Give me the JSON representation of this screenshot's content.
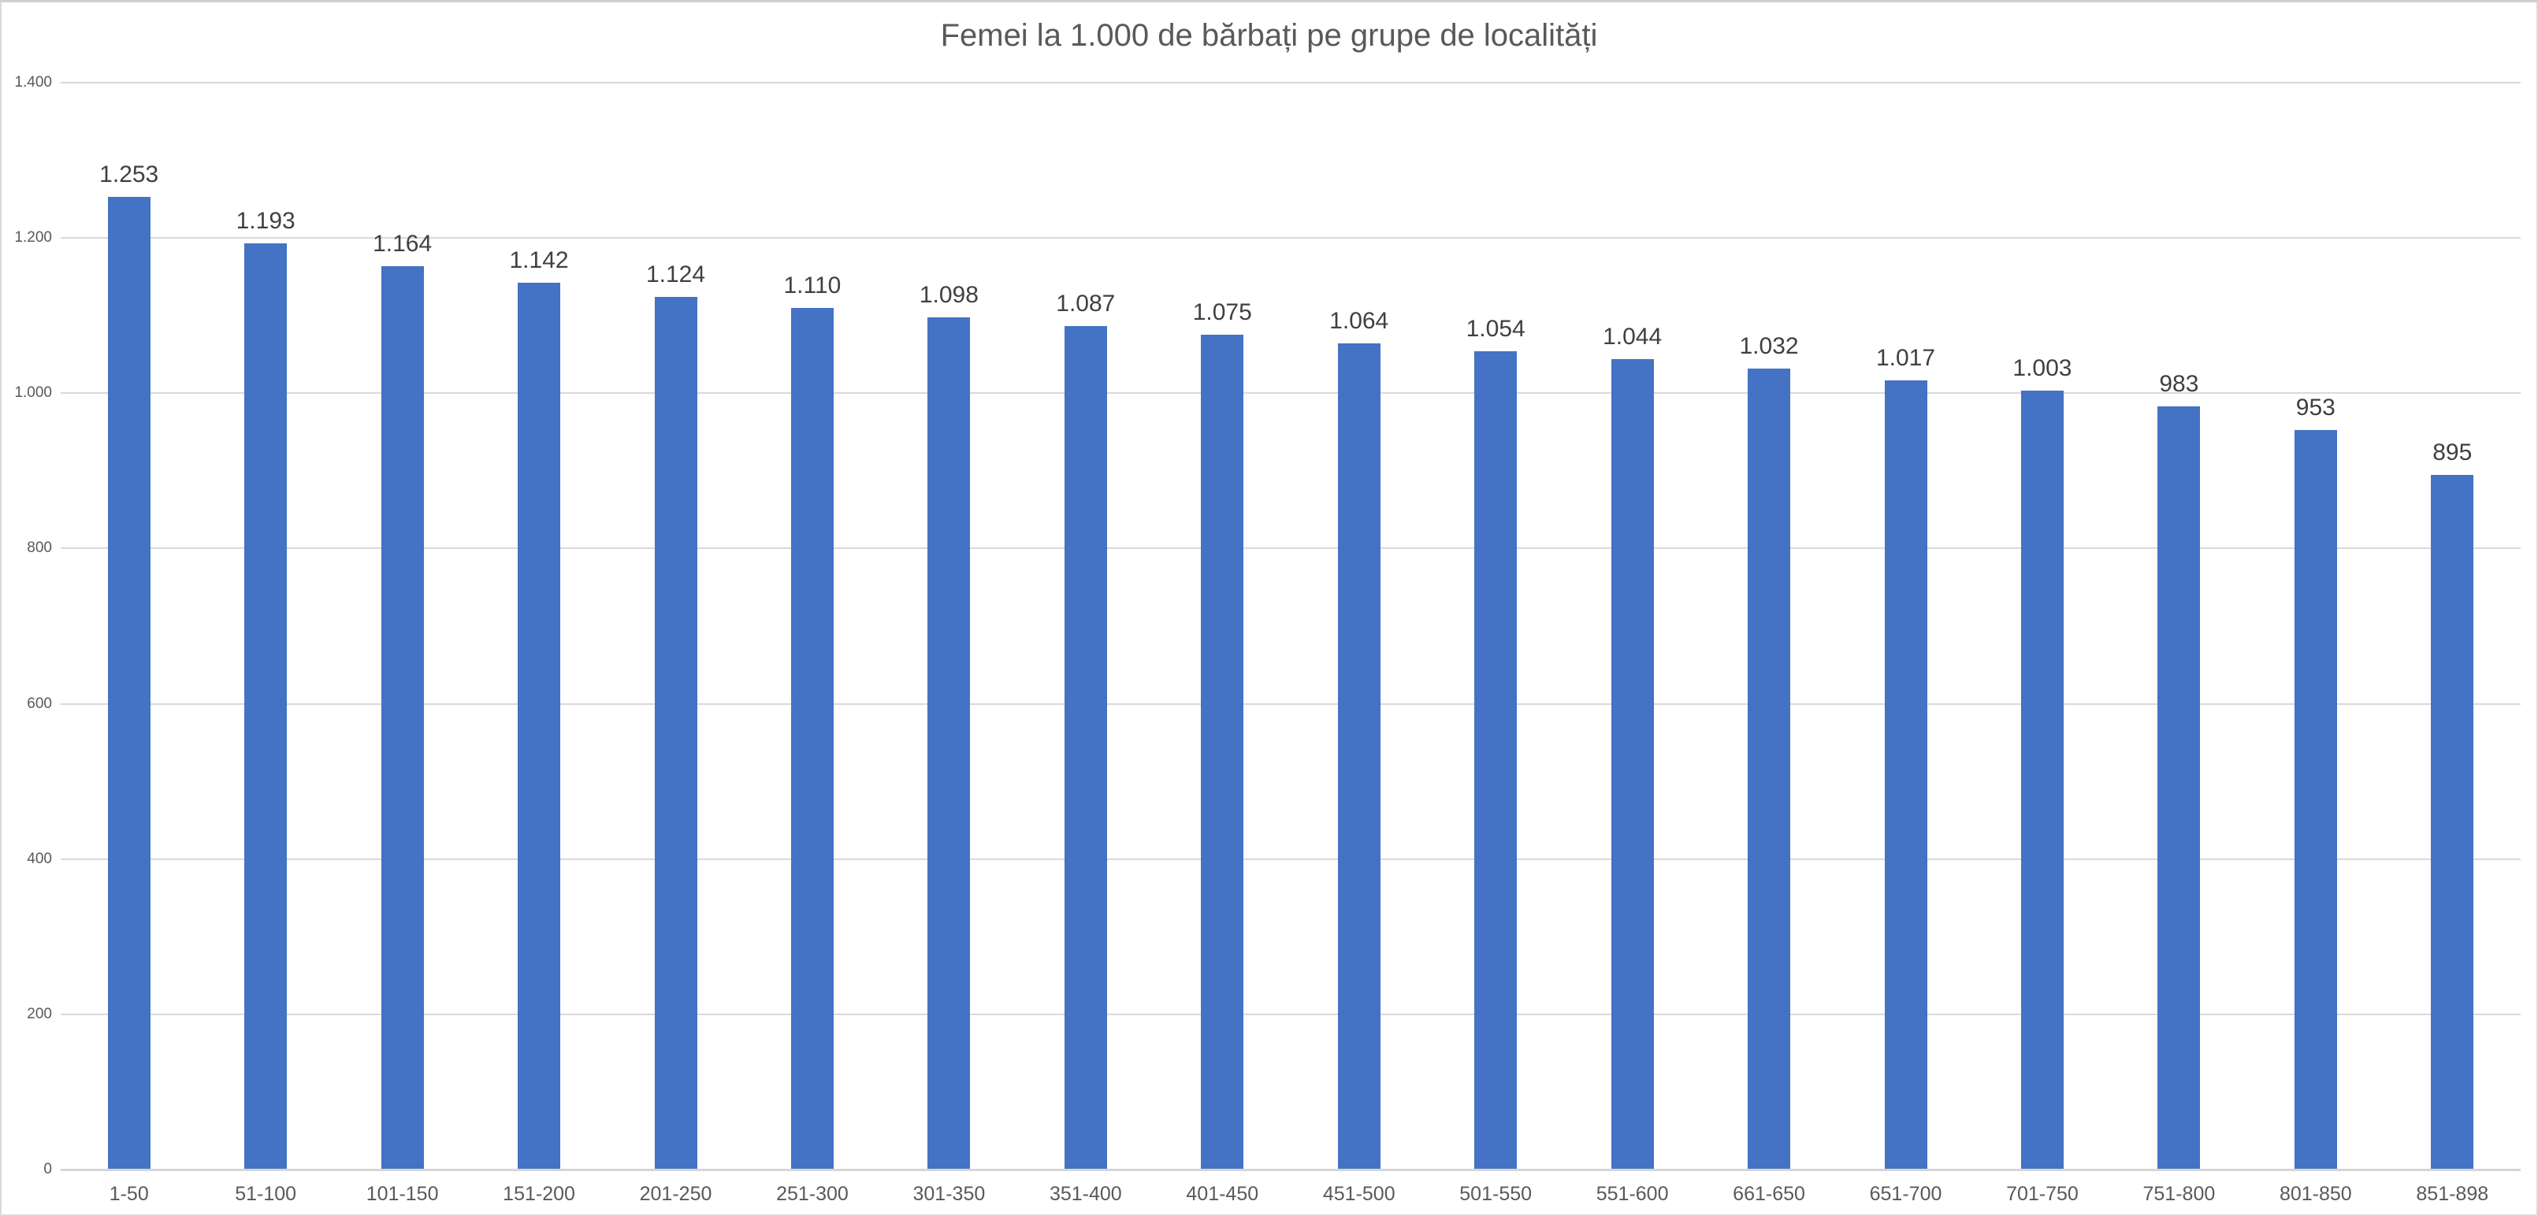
{
  "chart_data": {
    "type": "bar",
    "title": "Femei la 1.000 de bărbați pe grupe de localități",
    "categories": [
      "1-50",
      "51-100",
      "101-150",
      "151-200",
      "201-250",
      "251-300",
      "301-350",
      "351-400",
      "401-450",
      "451-500",
      "501-550",
      "551-600",
      "661-650",
      "651-700",
      "701-750",
      "751-800",
      "801-850",
      "851-898"
    ],
    "values": [
      1253,
      1193,
      1164,
      1142,
      1124,
      1110,
      1098,
      1087,
      1075,
      1064,
      1054,
      1044,
      1032,
      1017,
      1003,
      983,
      953,
      895
    ],
    "value_labels": [
      "1.253",
      "1.193",
      "1.164",
      "1.142",
      "1.124",
      "1.110",
      "1.098",
      "1.087",
      "1.075",
      "1.064",
      "1.054",
      "1.044",
      "1.032",
      "1.017",
      "1.003",
      "983",
      "953",
      "895"
    ],
    "xlabel": "",
    "ylabel": "",
    "ylim": [
      0,
      1400
    ],
    "yticks": [
      0,
      200,
      400,
      600,
      800,
      1000,
      1200,
      1400
    ],
    "ytick_labels": [
      "0",
      "200",
      "400",
      "600",
      "800",
      "1.000",
      "1.200",
      "1.400"
    ],
    "grid": "horizontal",
    "legend": "none",
    "colors": {
      "bar": "#4472C4",
      "gridline": "#D9D9D9",
      "axis_line": "#D6D6D6",
      "title_text": "#595959",
      "tick_text": "#595959",
      "data_label_text": "#404040",
      "border": "#D9D9D9",
      "background": "#FFFFFF"
    }
  }
}
